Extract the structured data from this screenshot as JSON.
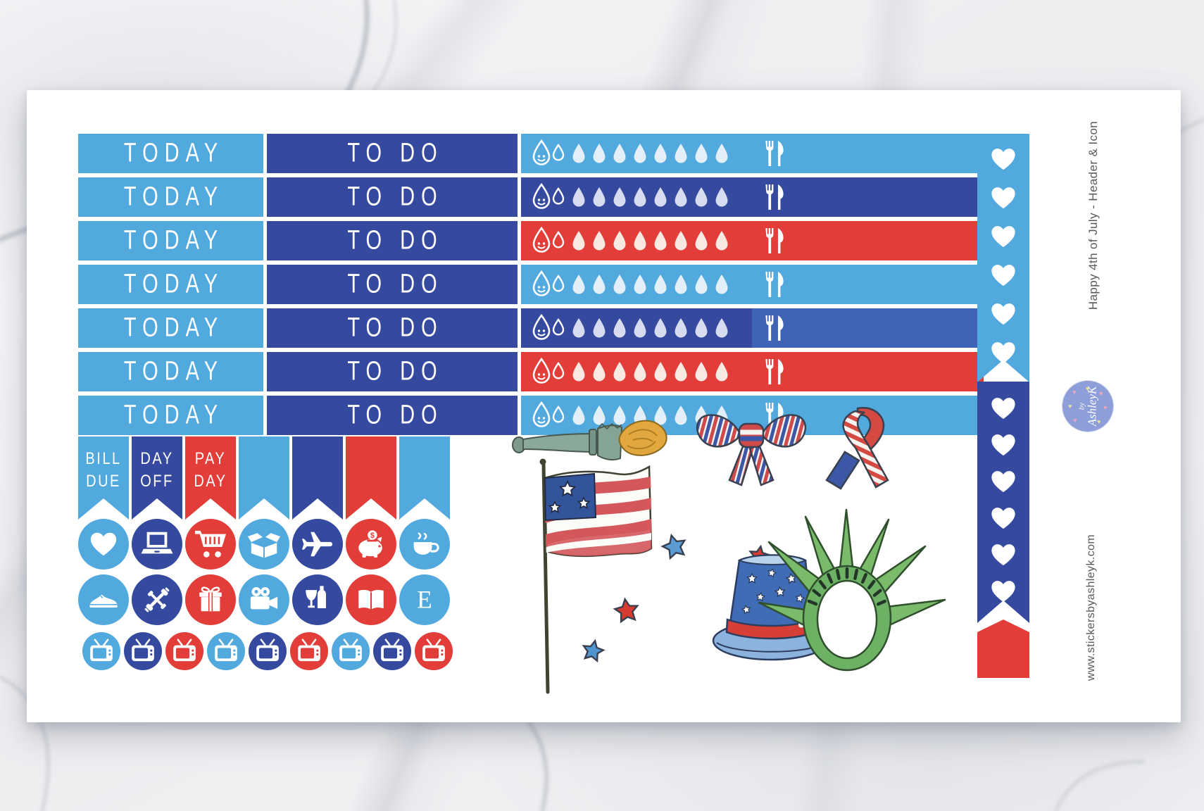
{
  "colors": {
    "light_blue": "#51a9de",
    "royal_blue": "#35499f",
    "red": "#e23d39",
    "medium_blue": "#3f63b5",
    "drop_tint_on_light": "#e3f0fa",
    "drop_tint_on_royal": "#d8dcf0",
    "drop_tint_on_red": "#f9e9e3",
    "logo_circle": "#8d9ed9",
    "side_text": "#58595b"
  },
  "header_rows": [
    {
      "today_label": "TODAY",
      "todo_label": "TO DO",
      "today_color": "light_blue",
      "todo_color": "royal_blue",
      "hydrate_color": "light_blue",
      "meal_color": "light_blue"
    },
    {
      "today_label": "TODAY",
      "todo_label": "TO DO",
      "today_color": "light_blue",
      "todo_color": "royal_blue",
      "hydrate_color": "royal_blue",
      "meal_color": "royal_blue"
    },
    {
      "today_label": "TODAY",
      "todo_label": "TO DO",
      "today_color": "light_blue",
      "todo_color": "royal_blue",
      "hydrate_color": "red",
      "meal_color": "red"
    },
    {
      "today_label": "TODAY",
      "todo_label": "TO DO",
      "today_color": "light_blue",
      "todo_color": "royal_blue",
      "hydrate_color": "light_blue",
      "meal_color": "light_blue"
    },
    {
      "today_label": "TODAY",
      "todo_label": "TO DO",
      "today_color": "light_blue",
      "todo_color": "royal_blue",
      "hydrate_color": "royal_blue",
      "meal_color": "medium_blue"
    },
    {
      "today_label": "TODAY",
      "todo_label": "TO DO",
      "today_color": "light_blue",
      "todo_color": "royal_blue",
      "hydrate_color": "red",
      "meal_color": "red"
    },
    {
      "today_label": "TODAY",
      "todo_label": "TO DO",
      "today_color": "light_blue",
      "todo_color": "royal_blue",
      "hydrate_color": "light_blue",
      "meal_color": "light_blue"
    }
  ],
  "hydrate": {
    "droplet_count": 8,
    "face_icon": "smiley-droplet-icon",
    "meal_icon": "fork-knife-icon"
  },
  "flags": [
    {
      "label": "BILL\nDUE",
      "color": "light_blue"
    },
    {
      "label": "DAY\nOFF",
      "color": "royal_blue"
    },
    {
      "label": "PAY\nDAY",
      "color": "red"
    },
    {
      "label": "",
      "color": "light_blue"
    },
    {
      "label": "",
      "color": "royal_blue"
    },
    {
      "label": "",
      "color": "red"
    },
    {
      "label": "",
      "color": "light_blue"
    }
  ],
  "icon_circles_row1": [
    {
      "icon": "heart-icon",
      "color": "light_blue"
    },
    {
      "icon": "laptop-icon",
      "color": "royal_blue"
    },
    {
      "icon": "shopping-cart-icon",
      "color": "red"
    },
    {
      "icon": "box-icon",
      "color": "light_blue"
    },
    {
      "icon": "plane-icon",
      "color": "royal_blue"
    },
    {
      "icon": "piggy-bank-icon",
      "color": "red"
    },
    {
      "icon": "coffee-icon",
      "color": "light_blue"
    }
  ],
  "icon_circles_row2": [
    {
      "icon": "shoe-icon",
      "color": "light_blue"
    },
    {
      "icon": "dumbbell-icon",
      "color": "royal_blue"
    },
    {
      "icon": "gift-icon",
      "color": "red"
    },
    {
      "icon": "video-camera-icon",
      "color": "light_blue"
    },
    {
      "icon": "wine-icon",
      "color": "royal_blue"
    },
    {
      "icon": "book-icon",
      "color": "red"
    },
    {
      "icon": "letter-e-icon",
      "color": "light_blue",
      "letter": "E"
    }
  ],
  "tv_row": [
    "light_blue",
    "royal_blue",
    "red",
    "light_blue",
    "royal_blue",
    "red",
    "light_blue",
    "royal_blue",
    "red"
  ],
  "heart_strips": [
    {
      "color": "light_blue",
      "hearts": 6
    },
    {
      "color": "royal_blue",
      "hearts": 6
    },
    {
      "color": "red",
      "hearts": 0,
      "tail": true
    }
  ],
  "illustrations": [
    "liberty-torch",
    "patriotic-bow",
    "awareness-ribbon",
    "american-flag",
    "stars",
    "uncle-sam-hat",
    "liberty-crown"
  ],
  "sidebar": {
    "product_title": "Happy 4th of July - Header & Icon",
    "website": "www.stickersbyashleyk.com",
    "logo_text_by": "by",
    "logo_text_name": "AshleyK"
  }
}
